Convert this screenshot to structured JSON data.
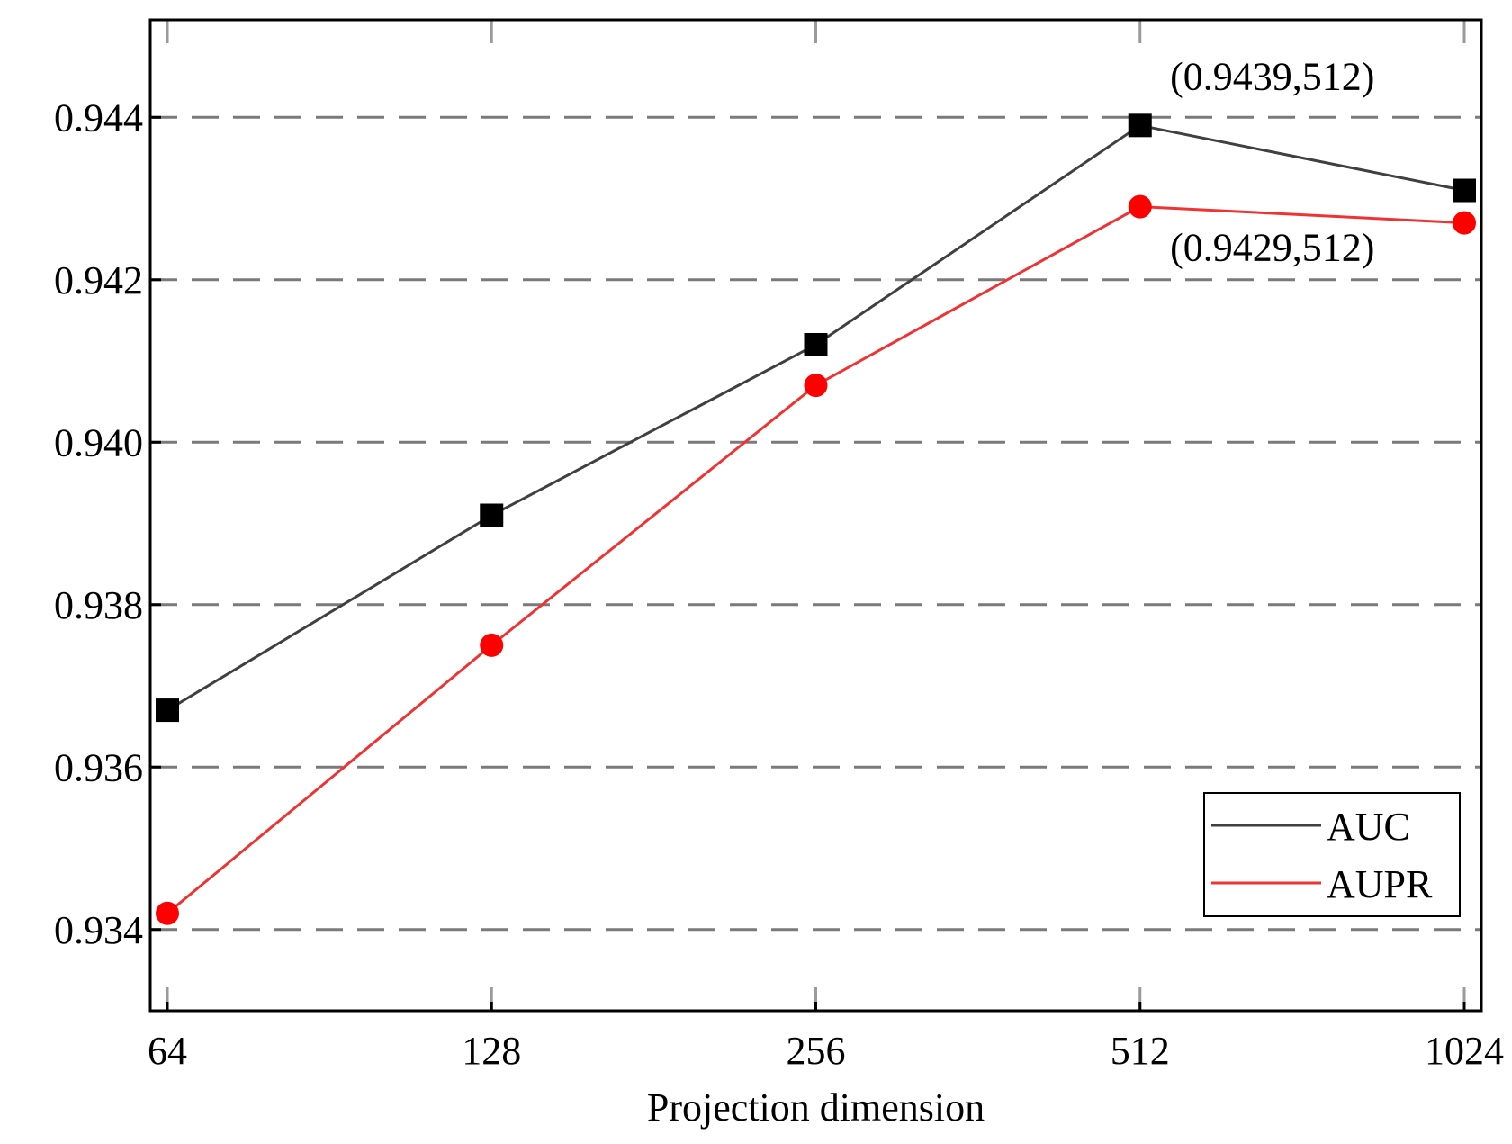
{
  "chart_data": {
    "type": "line",
    "categories": [
      "64",
      "128",
      "256",
      "512",
      "1024"
    ],
    "series": [
      {
        "name": "AUC",
        "values": [
          0.9367,
          0.9391,
          0.9412,
          0.9439,
          0.9431
        ],
        "color": "#404040",
        "marker": "square",
        "marker_color": "#000000"
      },
      {
        "name": "AUPR",
        "values": [
          0.9342,
          0.9375,
          0.9407,
          0.9429,
          0.9427
        ],
        "color": "#ee3333",
        "marker": "circle",
        "marker_color": "#ff0000"
      }
    ],
    "title": "",
    "xlabel": "Projection dimension",
    "ylabel": "",
    "ylim": [
      0.933,
      0.9452
    ],
    "yticks": [
      0.934,
      0.936,
      0.938,
      0.94,
      0.942,
      0.944
    ],
    "ytick_labels": [
      "0.934",
      "0.936",
      "0.938",
      "0.940",
      "0.942",
      "0.944"
    ],
    "grid": "horizontal-dashed",
    "legend": "bottom-right",
    "annotations": [
      {
        "text": "(0.9439,512)",
        "series": "AUC",
        "category": "512",
        "position": "above"
      },
      {
        "text": "(0.9429,512)",
        "series": "AUPR",
        "category": "512",
        "position": "below"
      }
    ]
  }
}
